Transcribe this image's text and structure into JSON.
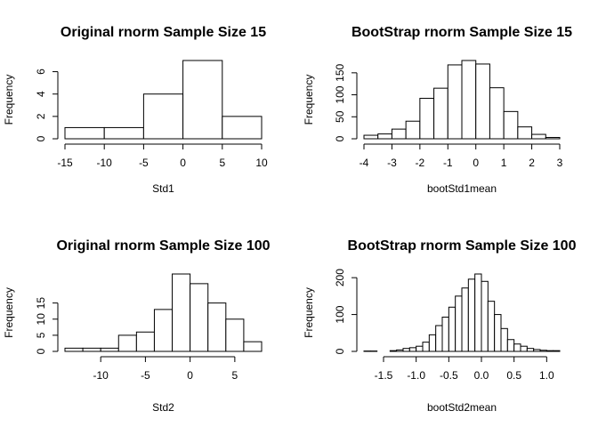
{
  "chart_data": [
    {
      "type": "bar",
      "title": "Original rnorm Sample Size 15",
      "xlabel": "Std1",
      "ylabel": "Frequency",
      "bins": [
        [
          -15,
          -10
        ],
        [
          -10,
          -5
        ],
        [
          -5,
          0
        ],
        [
          0,
          5
        ],
        [
          5,
          10
        ]
      ],
      "values": [
        1,
        1,
        4,
        7,
        2
      ],
      "xticks": [
        -15,
        -10,
        -5,
        0,
        5,
        10
      ],
      "xtick_labels": [
        "-15",
        "-10",
        "-5",
        "0",
        "5",
        "10"
      ],
      "yticks": [
        0,
        2,
        4,
        6
      ],
      "ylim": [
        0,
        7
      ],
      "xlim": [
        -15,
        10
      ]
    },
    {
      "type": "bar",
      "title": "BootStrap rnorm Sample Size 15",
      "xlabel": "bootStd1mean",
      "ylabel": "Frequency",
      "bins": [
        [
          -4,
          -3.5
        ],
        [
          -3.5,
          -3
        ],
        [
          -3,
          -2.5
        ],
        [
          -2.5,
          -2
        ],
        [
          -2,
          -1.5
        ],
        [
          -1.5,
          -1
        ],
        [
          -1,
          -0.5
        ],
        [
          -0.5,
          0
        ],
        [
          0,
          0.5
        ],
        [
          0.5,
          1
        ],
        [
          1,
          1.5
        ],
        [
          1.5,
          2
        ],
        [
          2,
          2.5
        ],
        [
          2.5,
          3
        ]
      ],
      "values": [
        8,
        11,
        22,
        40,
        92,
        115,
        168,
        178,
        170,
        116,
        62,
        27,
        10,
        3
      ],
      "xticks": [
        -4,
        -3,
        -2,
        -1,
        0,
        1,
        2,
        3
      ],
      "xtick_labels": [
        "-4",
        "-3",
        "-2",
        "-1",
        "0",
        "1",
        "2",
        "3"
      ],
      "yticks": [
        0,
        50,
        100,
        150
      ],
      "ylim": [
        0,
        178
      ],
      "xlim": [
        -4,
        3
      ]
    },
    {
      "type": "bar",
      "title": "Original rnorm Sample Size 100",
      "xlabel": "Std2",
      "ylabel": "Frequency",
      "bins": [
        [
          -14,
          -12
        ],
        [
          -12,
          -10
        ],
        [
          -10,
          -8
        ],
        [
          -8,
          -6
        ],
        [
          -6,
          -4
        ],
        [
          -4,
          -2
        ],
        [
          -2,
          0
        ],
        [
          0,
          2
        ],
        [
          2,
          4
        ],
        [
          4,
          6
        ],
        [
          6,
          8
        ]
      ],
      "values": [
        1,
        1,
        1,
        5,
        6,
        13,
        24,
        21,
        15,
        10,
        3
      ],
      "xticks": [
        -10,
        -5,
        0,
        5
      ],
      "xtick_labels": [
        "-10",
        "-5",
        "0",
        "5"
      ],
      "yticks": [
        0,
        5,
        10,
        15
      ],
      "ylim": [
        0,
        24
      ],
      "xlim": [
        -14,
        8
      ]
    },
    {
      "type": "bar",
      "title": "BootStrap rnorm Sample Size 100",
      "xlabel": "bootStd2mean",
      "ylabel": "Frequency",
      "bins": [
        [
          -1.8,
          -1.7
        ],
        [
          -1.7,
          -1.6
        ],
        [
          -1.6,
          -1.5
        ],
        [
          -1.5,
          -1.4
        ],
        [
          -1.4,
          -1.3
        ],
        [
          -1.3,
          -1.2
        ],
        [
          -1.2,
          -1.1
        ],
        [
          -1.1,
          -1.0
        ],
        [
          -1.0,
          -0.9
        ],
        [
          -0.9,
          -0.8
        ],
        [
          -0.8,
          -0.7
        ],
        [
          -0.7,
          -0.6
        ],
        [
          -0.6,
          -0.5
        ],
        [
          -0.5,
          -0.4
        ],
        [
          -0.4,
          -0.3
        ],
        [
          -0.3,
          -0.2
        ],
        [
          -0.2,
          -0.1
        ],
        [
          -0.1,
          0.0
        ],
        [
          0.0,
          0.1
        ],
        [
          0.1,
          0.2
        ],
        [
          0.2,
          0.3
        ],
        [
          0.3,
          0.4
        ],
        [
          0.4,
          0.5
        ],
        [
          0.5,
          0.6
        ],
        [
          0.6,
          0.7
        ],
        [
          0.7,
          0.8
        ],
        [
          0.8,
          0.9
        ],
        [
          0.9,
          1.0
        ],
        [
          1.0,
          1.1
        ],
        [
          1.1,
          1.2
        ]
      ],
      "values": [
        1,
        1,
        0,
        0,
        2,
        4,
        8,
        10,
        14,
        25,
        45,
        70,
        93,
        120,
        150,
        172,
        196,
        210,
        190,
        136,
        100,
        62,
        32,
        20,
        14,
        8,
        5,
        3,
        2,
        2
      ],
      "xticks": [
        -1.5,
        -1.0,
        -0.5,
        0.0,
        0.5,
        1.0
      ],
      "xtick_labels": [
        "-1.5",
        "-1.0",
        "-0.5",
        "0.0",
        "0.5",
        "1.0"
      ],
      "yticks": [
        0,
        100,
        200
      ],
      "ylim": [
        0,
        210
      ],
      "xlim": [
        -1.8,
        1.2
      ]
    }
  ]
}
